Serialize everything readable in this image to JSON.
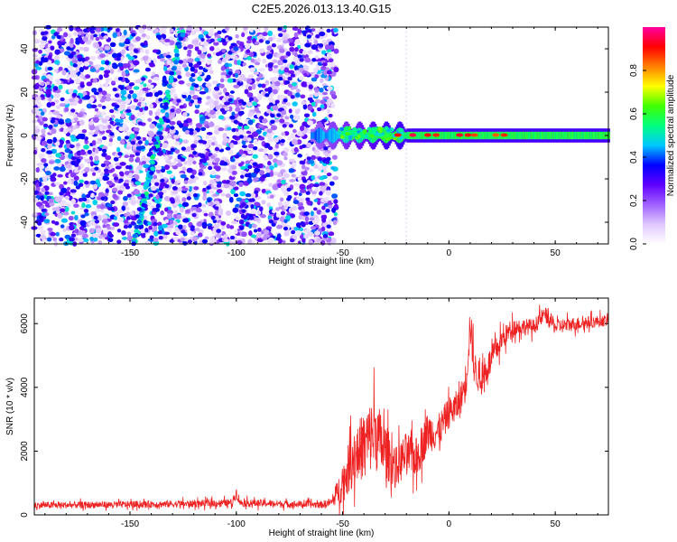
{
  "title": "C2E5.2026.013.13.40.G15",
  "colors": {
    "snr_line": "#ee2222",
    "bg": "#ffffff"
  },
  "chart_data": [
    {
      "type": "heatmap",
      "xlabel": "Height of straight line (km)",
      "ylabel": "Frequency (Hz)",
      "xlim": [
        -195,
        75
      ],
      "ylim": [
        -50,
        50
      ],
      "xticks": [
        -150,
        -100,
        -50,
        0,
        50
      ],
      "yticks": [
        -40,
        -20,
        0,
        20,
        40
      ],
      "colorbar": {
        "label": "Normalized spectral amplitude",
        "range": [
          0,
          1
        ],
        "ticks": [
          0.0,
          0.2,
          0.4,
          0.6,
          0.8
        ],
        "colormap": [
          "#ffffff",
          "#e0c8ff",
          "#a060ff",
          "#6000ff",
          "#0000ff",
          "#00c8ff",
          "#00ff80",
          "#40ff00",
          "#ffff00",
          "#ff8000",
          "#ff0000",
          "#ff00a0"
        ]
      },
      "features": {
        "noise_region_x": [
          -195,
          -55
        ],
        "tone_line_x": [
          -55,
          75
        ],
        "tone_freq": 0,
        "diagonal_trace": {
          "x": [
            -148,
            -125
          ],
          "y": [
            -50,
            50
          ]
        }
      }
    },
    {
      "type": "line",
      "xlabel": "Height of straight line (km)",
      "ylabel": "SNR (10 * v/v)",
      "xlim": [
        -195,
        75
      ],
      "ylim": [
        0,
        6800
      ],
      "xticks": [
        -150,
        -100,
        -50,
        0,
        50
      ],
      "yticks": [
        0,
        2000,
        4000,
        6000
      ],
      "series": [
        {
          "envelope": {
            "x": [
              -195,
              -160,
              -120,
              -102,
              -100,
              -98,
              -80,
              -60,
              -55,
              -50,
              -45,
              -40,
              -35,
              -30,
              -25,
              -20,
              -15,
              -10,
              -5,
              0,
              5,
              8,
              10,
              12,
              15,
              20,
              25,
              30,
              40,
              45,
              50,
              60,
              75
            ],
            "y": [
              300,
              320,
              350,
              380,
              700,
              380,
              350,
              320,
              400,
              1000,
              1800,
              2200,
              2600,
              2000,
              1500,
              1900,
              1800,
              2600,
              2600,
              3200,
              3500,
              4200,
              6000,
              4600,
              4200,
              4900,
              5500,
              5900,
              5900,
              6300,
              5900,
              6000,
              6100
            ],
            "spread": [
              150,
              150,
              160,
              170,
              250,
              170,
              160,
              160,
              200,
              900,
              1300,
              1500,
              1700,
              1300,
              900,
              1000,
              900,
              900,
              800,
              700,
              700,
              900,
              900,
              800,
              700,
              600,
              500,
              400,
              350,
              350,
              350,
              300,
              250
            ]
          }
        }
      ]
    }
  ]
}
